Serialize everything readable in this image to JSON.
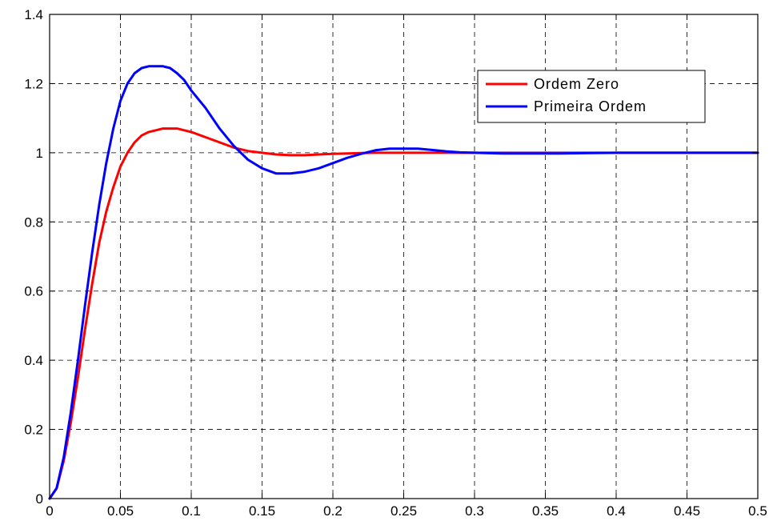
{
  "chart_data": {
    "type": "line",
    "title": "",
    "xlabel": "",
    "ylabel": "",
    "xlim": [
      0,
      0.5
    ],
    "ylim": [
      0,
      1.4
    ],
    "grid": true,
    "legend_position": "top-right",
    "x_ticks": [
      "0",
      "0.05",
      "0.1",
      "0.15",
      "0.2",
      "0.25",
      "0.3",
      "0.35",
      "0.4",
      "0.45",
      "0.5"
    ],
    "y_ticks": [
      "0",
      "0.2",
      "0.4",
      "0.6",
      "0.8",
      "1",
      "1.2",
      "1.4"
    ],
    "x": [
      0,
      0.005,
      0.01,
      0.015,
      0.02,
      0.025,
      0.03,
      0.035,
      0.04,
      0.045,
      0.05,
      0.055,
      0.06,
      0.065,
      0.07,
      0.075,
      0.08,
      0.085,
      0.09,
      0.095,
      0.1,
      0.11,
      0.12,
      0.13,
      0.14,
      0.15,
      0.16,
      0.17,
      0.18,
      0.19,
      0.2,
      0.21,
      0.22,
      0.23,
      0.24,
      0.25,
      0.26,
      0.27,
      0.28,
      0.29,
      0.3,
      0.32,
      0.34,
      0.36,
      0.38,
      0.4,
      0.45,
      0.5
    ],
    "series": [
      {
        "name": "Ordem Zero",
        "color": "#ff0000",
        "values": [
          0,
          0.03,
          0.11,
          0.22,
          0.35,
          0.49,
          0.62,
          0.74,
          0.83,
          0.9,
          0.96,
          1.0,
          1.03,
          1.05,
          1.06,
          1.065,
          1.07,
          1.07,
          1.07,
          1.065,
          1.06,
          1.045,
          1.03,
          1.015,
          1.005,
          1.0,
          0.995,
          0.993,
          0.993,
          0.995,
          0.997,
          0.998,
          0.999,
          1.0,
          1.0,
          1.0,
          1.0,
          1.0,
          1.0,
          1.0,
          1.0,
          1.0,
          1.0,
          1.0,
          1.0,
          1.0,
          1.0,
          1.0
        ]
      },
      {
        "name": "Primeira Ordem",
        "color": "#0000ff",
        "values": [
          0,
          0.03,
          0.12,
          0.25,
          0.4,
          0.56,
          0.71,
          0.85,
          0.97,
          1.07,
          1.15,
          1.2,
          1.23,
          1.245,
          1.25,
          1.25,
          1.25,
          1.245,
          1.23,
          1.21,
          1.18,
          1.13,
          1.07,
          1.02,
          0.98,
          0.955,
          0.94,
          0.94,
          0.945,
          0.955,
          0.97,
          0.985,
          0.997,
          1.007,
          1.012,
          1.012,
          1.012,
          1.008,
          1.004,
          1.001,
          1.0,
          0.998,
          0.998,
          0.998,
          0.999,
          1.0,
          1.0,
          1.0
        ]
      }
    ]
  }
}
